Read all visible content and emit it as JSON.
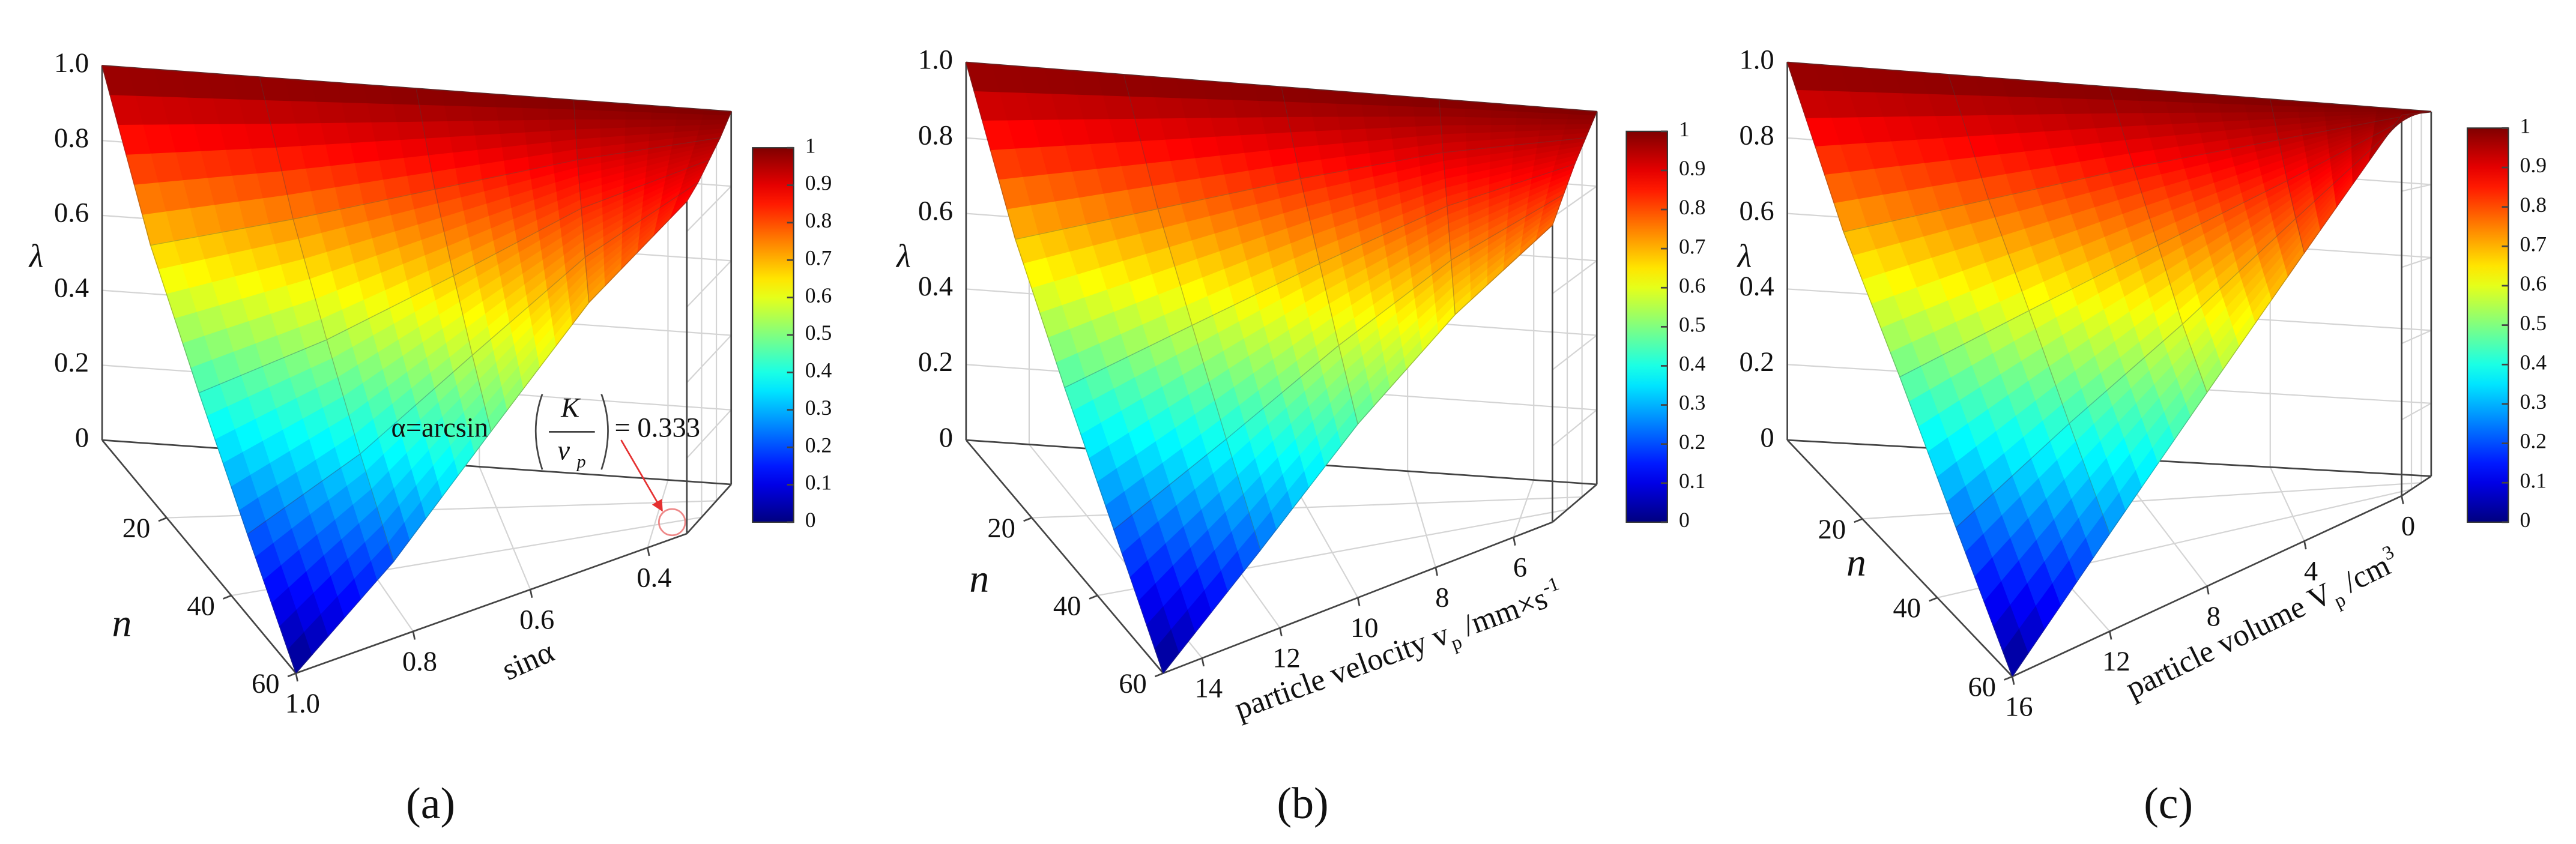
{
  "chart_data": [
    {
      "type": "surface",
      "panel_label": "(a)",
      "zlabel": "λ",
      "ylabel": "n",
      "xlabel": [
        "sinα"
      ],
      "x": [
        1,
        0.833,
        0.667,
        0.5,
        0.333
      ],
      "xlim": [
        1,
        0.333
      ],
      "xticks": [
        {
          "value": 1,
          "label": "1.0"
        },
        0.8,
        0.6,
        0.4
      ],
      "y": [
        0,
        15,
        30,
        45,
        60
      ],
      "ylim": [
        0,
        60
      ],
      "yticks": [
        20,
        40,
        60
      ],
      "zlim": [
        0,
        1
      ],
      "zticks": [
        0,
        0.2,
        0.4,
        0.6,
        0.8,
        {
          "value": 1,
          "label": "1.0"
        }
      ],
      "z": [
        [
          1,
          1,
          1,
          1,
          1
        ],
        [
          0.67,
          0.74,
          0.82,
          0.9,
          0.96
        ],
        [
          0.43,
          0.54,
          0.68,
          0.83,
          0.93
        ],
        [
          0.21,
          0.36,
          0.56,
          0.76,
          0.9
        ],
        [
          0,
          0.2,
          0.45,
          0.7,
          0.88
        ]
      ],
      "colorbar": {
        "lim": [
          0,
          1
        ],
        "ticks": [
          0,
          0.1,
          0.2,
          0.3,
          0.4,
          0.5,
          0.6,
          0.7,
          0.8,
          0.9,
          1
        ],
        "colormap": "jet"
      },
      "annotation": [
        "α=arcsin",
        "K",
        "v",
        "p",
        "= 0.333"
      ]
    },
    {
      "type": "surface",
      "panel_label": "(b)",
      "zlabel": "λ",
      "ylabel": "n",
      "xlabel": [
        "particle velocity v",
        "p",
        " /mm×s",
        "-1"
      ],
      "x": [
        15,
        12.5,
        10,
        7.5,
        5
      ],
      "xlim": [
        15,
        5
      ],
      "xticks": [
        14,
        12,
        10,
        8,
        6
      ],
      "y": [
        0,
        15,
        30,
        45,
        60
      ],
      "ylim": [
        0,
        60
      ],
      "yticks": [
        20,
        40,
        60
      ],
      "zlim": [
        0,
        1
      ],
      "zticks": [
        0,
        0.2,
        0.4,
        0.6,
        0.8,
        {
          "value": 1,
          "label": "1.0"
        }
      ],
      "z": [
        [
          1,
          1,
          1,
          1,
          1
        ],
        [
          0.68,
          0.76,
          0.84,
          0.91,
          0.95
        ],
        [
          0.44,
          0.57,
          0.7,
          0.82,
          0.9
        ],
        [
          0.22,
          0.39,
          0.57,
          0.73,
          0.84
        ],
        [
          0,
          0.22,
          0.45,
          0.64,
          0.78
        ]
      ],
      "colorbar": {
        "lim": [
          0,
          1
        ],
        "ticks": [
          0,
          0.1,
          0.2,
          0.3,
          0.4,
          0.5,
          0.6,
          0.7,
          0.8,
          0.9,
          1
        ],
        "colormap": "jet"
      }
    },
    {
      "type": "surface",
      "panel_label": "(c)",
      "zlabel": "λ",
      "ylabel": "n",
      "xlabel": [
        "particle volume V",
        "p",
        " /cm",
        "3"
      ],
      "x": [
        16,
        12,
        8,
        4,
        0
      ],
      "xlim": [
        16,
        0
      ],
      "xticks": [
        16,
        12,
        8,
        4,
        0
      ],
      "y": [
        0,
        15,
        30,
        45,
        60
      ],
      "ylim": [
        0,
        60
      ],
      "yticks": [
        20,
        40,
        60
      ],
      "zlim": [
        0,
        1
      ],
      "zticks": [
        0,
        0.2,
        0.4,
        0.6,
        0.8,
        {
          "value": 1,
          "label": "1.0"
        }
      ],
      "z": [
        [
          1,
          1,
          1,
          1,
          1
        ],
        [
          0.7,
          0.78,
          0.86,
          0.93,
          1
        ],
        [
          0.47,
          0.6,
          0.73,
          0.86,
          1
        ],
        [
          0.23,
          0.42,
          0.6,
          0.8,
          1
        ],
        [
          0,
          0.25,
          0.5,
          0.75,
          1
        ]
      ],
      "colorbar": {
        "lim": [
          0,
          1
        ],
        "ticks": [
          0,
          0.1,
          0.2,
          0.3,
          0.4,
          0.5,
          0.6,
          0.7,
          0.8,
          0.9,
          1
        ],
        "colormap": "jet"
      }
    }
  ]
}
